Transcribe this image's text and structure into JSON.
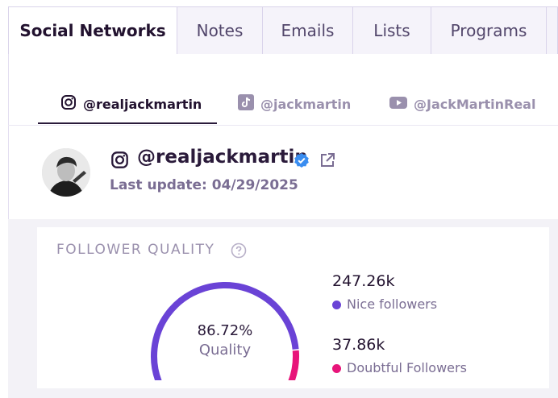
{
  "tabs": [
    {
      "label": "Social Networks",
      "active": true
    },
    {
      "label": "Notes",
      "active": false
    },
    {
      "label": "Emails",
      "active": false
    },
    {
      "label": "Lists",
      "active": false
    },
    {
      "label": "Programs",
      "active": false
    }
  ],
  "accounts": [
    {
      "platform": "instagram",
      "icon": "instagram-icon",
      "handle": "@realjackmartin",
      "active": true
    },
    {
      "platform": "tiktok",
      "icon": "tiktok-icon",
      "handle": "@jackmartin",
      "active": false
    },
    {
      "platform": "youtube",
      "icon": "youtube-icon",
      "handle": "@JackMartinReal",
      "active": false
    }
  ],
  "profile": {
    "handle": "@realjackmartin",
    "last_update": "Last update: 04/29/2025",
    "verified": true
  },
  "follower_quality": {
    "title": "FOLLOWER QUALITY",
    "quality_percent": "86.72%",
    "quality_label": "Quality",
    "quality_fraction": 0.8672,
    "nice_value": "247.26k",
    "nice_label": "Nice followers",
    "doubtful_value": "37.86k",
    "doubtful_label": "Doubtful Followers"
  },
  "colors": {
    "nice": "#6a43d6",
    "doubtful": "#e8157a",
    "text_dark": "#2a1a3a",
    "muted": "#7a6d93",
    "verified": "#3a8df0"
  }
}
